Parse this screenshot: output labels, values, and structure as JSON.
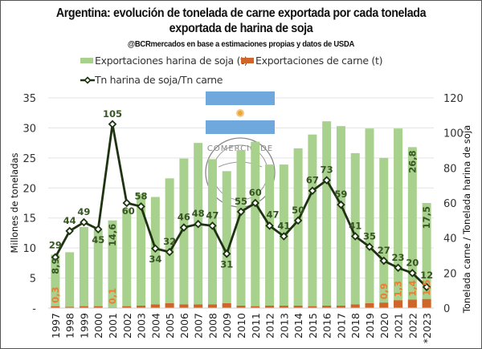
{
  "header": {
    "title_line1": "Argentina: evolución de tonelada de carne exportada por cada tonelada",
    "title_line2": "exportada de harina de soja",
    "subtitle": "@BCRmercados en base a estimaciones propias y datos de USDA"
  },
  "legend": {
    "soy": "Exportaciones harina de soja (t)",
    "meat": "Exportaciones de carne (t)",
    "ratio": "Tn harina de soja/Tn carne"
  },
  "colors": {
    "soy": "#a9d18e",
    "meat": "#d0652a",
    "meat_label": "#ed7d31",
    "line": "#1e3311",
    "soy_label": "#375623",
    "grid": "#e3e3e3",
    "flag_blue": "#6fa8dc",
    "flag_sun": "#f0a530"
  },
  "chart_data": {
    "type": "bar",
    "title": "Argentina: evolución de tonelada de carne exportada por cada tonelada exportada de harina de soja",
    "subtitle": "@BCRmercados en base a estimaciones propias y datos de USDA",
    "categories": [
      "1997",
      "1998",
      "1999",
      "2000",
      "2001",
      "2002",
      "2003",
      "2004",
      "2005",
      "2006",
      "2007",
      "2008",
      "2009",
      "2010",
      "2011",
      "2012",
      "2013",
      "2014",
      "2015",
      "2016",
      "2017",
      "2018",
      "2019",
      "2020",
      "2021",
      "2022",
      "*2023"
    ],
    "series": [
      {
        "name": "Exportaciones harina de soja (t)",
        "type": "bar",
        "axis": "left",
        "values": [
          8.9,
          9.3,
          13.5,
          13.0,
          14.6,
          16.6,
          19.0,
          18.5,
          21.6,
          24.9,
          27.5,
          24.8,
          22.8,
          26.3,
          27.7,
          23.9,
          23.9,
          26.6,
          28.9,
          31.1,
          30.3,
          25.8,
          29.9,
          25.0,
          29.9,
          26.8,
          17.5
        ],
        "data_labels": {
          "0": "8,9",
          "4": "14,6",
          "25": "26,8",
          "26": "17,5"
        }
      },
      {
        "name": "Exportaciones de carne (t)",
        "type": "bar",
        "axis": "left",
        "values": [
          0.3,
          0.2,
          0.3,
          0.3,
          0.1,
          0.3,
          0.4,
          0.6,
          0.8,
          0.6,
          0.6,
          0.6,
          0.8,
          0.4,
          0.3,
          0.4,
          0.4,
          0.4,
          0.3,
          0.4,
          0.4,
          0.6,
          0.8,
          0.9,
          1.3,
          1.4,
          1.5
        ],
        "data_labels": {
          "0": "0,3",
          "4": "0,1",
          "23": "0,9",
          "24": "1,3",
          "25": "1,4",
          "26": "1,5"
        }
      },
      {
        "name": "Tn harina de soja/Tn carne",
        "type": "line",
        "axis": "right",
        "values": [
          29,
          44,
          49,
          45,
          105,
          60,
          58,
          34,
          32,
          46,
          48,
          47,
          31,
          55,
          60,
          47,
          41,
          50,
          67,
          73,
          59,
          41,
          35,
          27,
          23,
          20,
          12
        ]
      }
    ],
    "ylabel": "Millones de toneladas",
    "ylabel_right": "Tonelada carne / Tonelada harina de soja",
    "ylim": [
      0,
      35
    ],
    "ylim_right": [
      0,
      120
    ],
    "yticks": [
      "-",
      "5",
      "10",
      "15",
      "20",
      "25",
      "30",
      "35"
    ],
    "yticks_right": [
      "0",
      "20",
      "40",
      "60",
      "80",
      "100",
      "120"
    ],
    "grid": true,
    "legend_position": "top"
  }
}
